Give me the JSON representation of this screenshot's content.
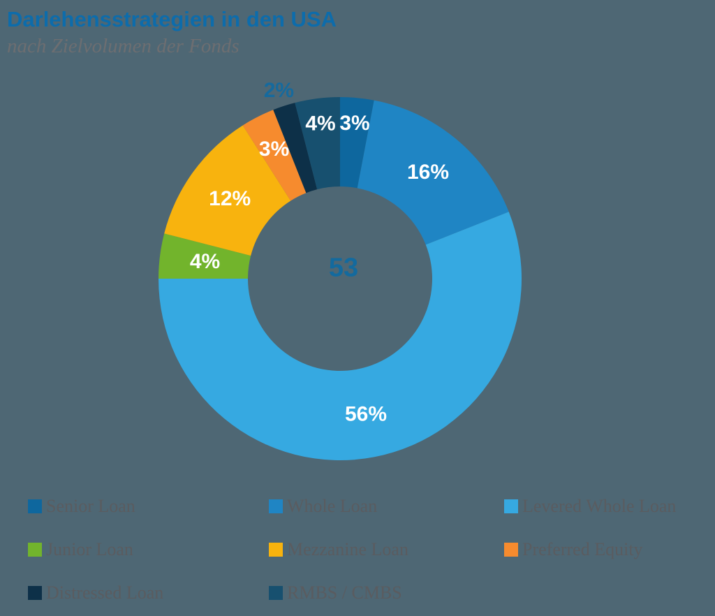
{
  "header": {
    "title": "Darlehensstrategien in den USA",
    "subtitle": "nach Zielvolumen der Fonds"
  },
  "chart_data": {
    "type": "pie",
    "donut": true,
    "title": "Darlehensstrategien in den USA",
    "subtitle": "nach Zielvolumen der Fonds",
    "center_label": "53",
    "units": "%",
    "direction": "clockwise",
    "start_angle_deg": 0,
    "legend_position": "bottom",
    "segments": [
      {
        "label": "Senior Loan",
        "value": 3,
        "display": "3%",
        "color": "#0e679e",
        "label_color": "#ffffff",
        "label_radius": 0.86
      },
      {
        "label": "Whole Loan",
        "value": 16,
        "display": "16%",
        "color": "#1f85c4",
        "label_color": "#ffffff",
        "label_radius": 0.76
      },
      {
        "label": "Levered Whole Loan",
        "value": 56,
        "display": "56%",
        "color": "#36a9e1",
        "label_color": "#ffffff",
        "label_radius": 0.76
      },
      {
        "label": "Junior Loan",
        "value": 4,
        "display": "4%",
        "color": "#72b42c",
        "label_color": "#ffffff",
        "label_radius": 0.75
      },
      {
        "label": "Mezzanine Loan",
        "value": 12,
        "display": "12%",
        "color": "#f8b30e",
        "label_color": "#ffffff",
        "label_radius": 0.75
      },
      {
        "label": "Preferred Equity",
        "value": 3,
        "display": "3%",
        "color": "#f68b2e",
        "label_color": "#ffffff",
        "label_radius": 0.8
      },
      {
        "label": "Distressed Loan",
        "value": 2,
        "display": "2%",
        "color": "#0d3048",
        "label_color": "#156a9e",
        "label_radius": 1.09,
        "label_outside": true
      },
      {
        "label": "RMBS / CMBS",
        "value": 4,
        "display": "4%",
        "color": "#17506f",
        "label_color": "#ffffff",
        "label_radius": 0.86
      }
    ]
  },
  "colors": {
    "background": "#4e6774",
    "title": "#0d6cab",
    "subtitle": "#6d6e71",
    "legend_text": "#5a5c60",
    "center_label": "#136a9e"
  }
}
